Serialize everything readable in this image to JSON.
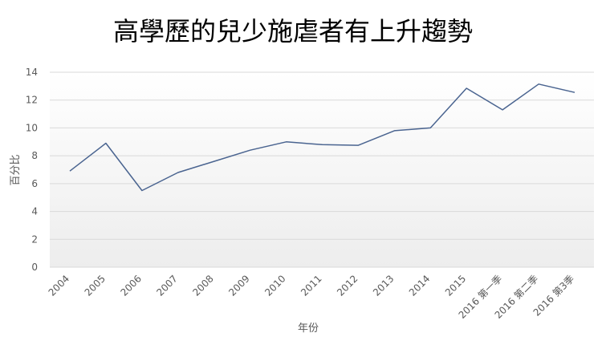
{
  "chart_data": {
    "type": "line",
    "title": "高學歷的兒少施虐者有上升趨勢",
    "xlabel": "年份",
    "ylabel": "百分比",
    "categories": [
      "2004",
      "2005",
      "2006",
      "2007",
      "2008",
      "2009",
      "2010",
      "2011",
      "2012",
      "2013",
      "2014",
      "2015",
      "2016 第一季",
      "2016 第二季",
      "2016 第3季"
    ],
    "values": [
      6.9,
      8.9,
      5.5,
      6.8,
      7.6,
      8.4,
      9.0,
      8.8,
      8.75,
      9.8,
      10.0,
      12.85,
      11.3,
      13.15,
      12.55
    ],
    "ylim": [
      0,
      14
    ],
    "yticks": [
      0,
      2,
      4,
      6,
      8,
      10,
      12,
      14
    ],
    "grid": true,
    "legend": "none",
    "line_color": "#4A6490",
    "grid_color": "#D9D9D9",
    "plot_gradient_top": "#FFFFFF",
    "plot_gradient_bottom": "#EDEDED"
  }
}
